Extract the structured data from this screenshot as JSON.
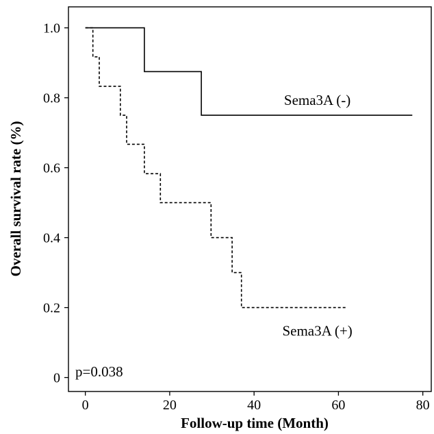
{
  "chart_data": {
    "type": "line",
    "subtype": "kaplan-meier step",
    "title": "",
    "xlabel": "Follow-up time (Month)",
    "ylabel": "Overall survival rate (%)",
    "xlim": [
      -4,
      82
    ],
    "ylim": [
      -0.04,
      1.06
    ],
    "xticks": [
      0,
      20,
      40,
      60,
      80
    ],
    "xtick_labels": [
      "0",
      "20",
      "40",
      "60",
      "80"
    ],
    "yticks": [
      0,
      0.2,
      0.4,
      0.6,
      0.8,
      1.0
    ],
    "ytick_labels": [
      "0",
      "0.2",
      "0.4",
      "0.6",
      "0.8",
      "1.0"
    ],
    "grid": false,
    "legend": "none",
    "series": [
      {
        "name": "Sema3A (-)",
        "line_style": "solid",
        "points": [
          [
            0,
            1.0
          ],
          [
            14,
            1.0
          ],
          [
            14,
            0.875
          ],
          [
            27.5,
            0.875
          ],
          [
            27.5,
            0.75
          ],
          [
            77.5,
            0.75
          ]
        ]
      },
      {
        "name": "Sema3A (+)",
        "line_style": "dashed",
        "points": [
          [
            0,
            1.0
          ],
          [
            1.8,
            1.0
          ],
          [
            1.8,
            0.917
          ],
          [
            3.3,
            0.917
          ],
          [
            3.3,
            0.833
          ],
          [
            8.3,
            0.833
          ],
          [
            8.3,
            0.75
          ],
          [
            9.8,
            0.75
          ],
          [
            9.8,
            0.667
          ],
          [
            14,
            0.667
          ],
          [
            14,
            0.583
          ],
          [
            17.8,
            0.583
          ],
          [
            17.8,
            0.5
          ],
          [
            29.8,
            0.5
          ],
          [
            29.8,
            0.4
          ],
          [
            34.8,
            0.4
          ],
          [
            34.8,
            0.3
          ],
          [
            37,
            0.3
          ],
          [
            37,
            0.2
          ],
          [
            62,
            0.2
          ]
        ]
      }
    ],
    "annotations": [
      {
        "text": "Sema3A (-)",
        "x": 55,
        "y": 0.78
      },
      {
        "text": "Sema3A (+)",
        "x": 55,
        "y": 0.12
      },
      {
        "text": "p=0.038",
        "x": -2,
        "y": -0.01
      }
    ]
  }
}
